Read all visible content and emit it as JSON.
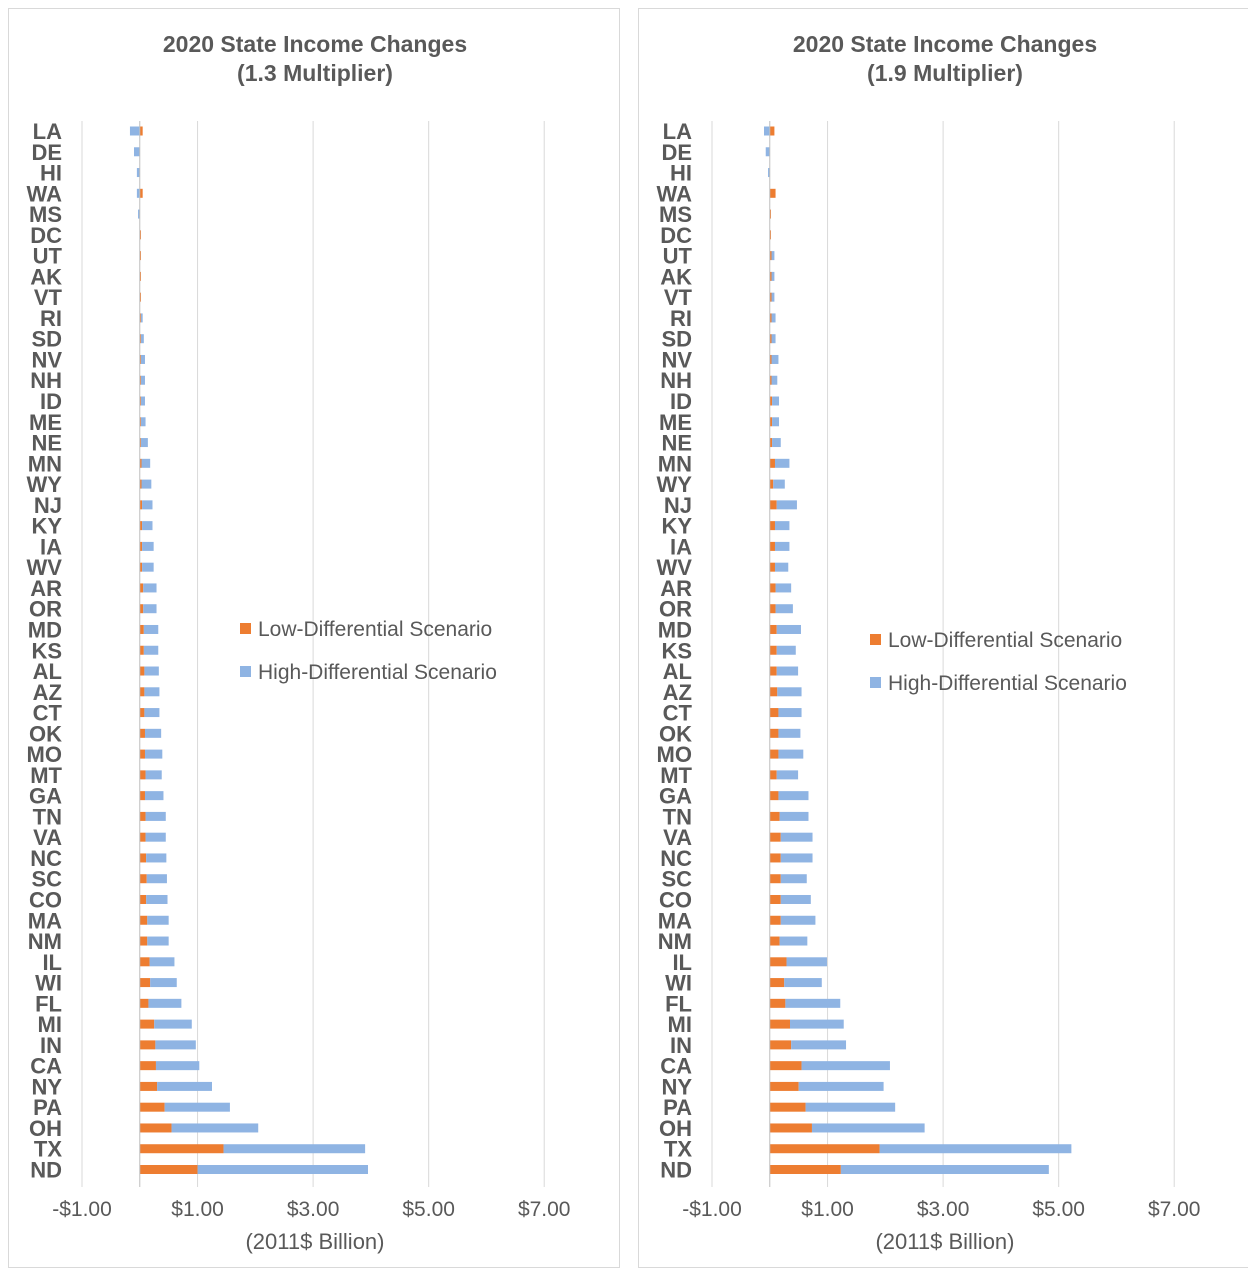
{
  "colors": {
    "low": "#ED7D31",
    "high": "#8FB4E3",
    "grid": "#D9D9D9",
    "text": "#595959"
  },
  "chart_data": [
    {
      "type": "bar",
      "orientation": "horizontal",
      "stacked": true,
      "title": "2020 State Income Changes",
      "subtitle": "(1.3 Multiplier)",
      "xlabel": "(2011$ Billion)",
      "xlim": [
        -1,
        8
      ],
      "xticks": [
        -1,
        1,
        3,
        5,
        7
      ],
      "xtick_labels": [
        "-$1.00",
        "$1.00",
        "$3.00",
        "$5.00",
        "$7.00"
      ],
      "grid": true,
      "legend_position": "center-right",
      "categories": [
        "LA",
        "DE",
        "HI",
        "WA",
        "MS",
        "DC",
        "UT",
        "AK",
        "VT",
        "RI",
        "SD",
        "NV",
        "NH",
        "ID",
        "ME",
        "NE",
        "MN",
        "WY",
        "NJ",
        "KY",
        "IA",
        "WV",
        "AR",
        "OR",
        "MD",
        "KS",
        "AL",
        "AZ",
        "CT",
        "OK",
        "MO",
        "MT",
        "GA",
        "TN",
        "VA",
        "NC",
        "SC",
        "CO",
        "MA",
        "NM",
        "IL",
        "WI",
        "FL",
        "MI",
        "IN",
        "CA",
        "NY",
        "PA",
        "OH",
        "TX",
        "ND"
      ],
      "series": [
        {
          "name": "Low-Differential Scenario",
          "values": [
            0.05,
            0,
            0,
            0.05,
            0,
            0.02,
            0.02,
            0.02,
            0.02,
            0.02,
            0.02,
            0.02,
            0.02,
            0.02,
            0.02,
            0.02,
            0.03,
            0.03,
            0.04,
            0.04,
            0.04,
            0.04,
            0.06,
            0.06,
            0.07,
            0.07,
            0.08,
            0.08,
            0.08,
            0.09,
            0.09,
            0.1,
            0.09,
            0.1,
            0.1,
            0.11,
            0.12,
            0.11,
            0.13,
            0.13,
            0.17,
            0.18,
            0.15,
            0.25,
            0.27,
            0.28,
            0.3,
            0.43,
            0.55,
            1.45,
            1.0
          ]
        },
        {
          "name": "High-Differential Scenario",
          "values": [
            -0.17,
            -0.1,
            -0.05,
            -0.05,
            -0.03,
            0,
            0,
            0,
            0,
            0.03,
            0.05,
            0.07,
            0.07,
            0.07,
            0.08,
            0.12,
            0.15,
            0.17,
            0.18,
            0.18,
            0.2,
            0.2,
            0.23,
            0.23,
            0.25,
            0.25,
            0.25,
            0.26,
            0.26,
            0.28,
            0.3,
            0.28,
            0.32,
            0.35,
            0.35,
            0.35,
            0.35,
            0.37,
            0.37,
            0.37,
            0.43,
            0.46,
            0.57,
            0.65,
            0.7,
            0.75,
            0.95,
            1.13,
            1.5,
            2.45,
            2.95
          ]
        }
      ]
    },
    {
      "type": "bar",
      "orientation": "horizontal",
      "stacked": true,
      "title": "2020 State Income Changes",
      "subtitle": "(1.9 Multiplier)",
      "xlabel": "(2011$ Billion)",
      "xlim": [
        -1,
        8
      ],
      "xticks": [
        -1,
        1,
        3,
        5,
        7
      ],
      "xtick_labels": [
        "-$1.00",
        "$1.00",
        "$3.00",
        "$5.00",
        "$7.00"
      ],
      "grid": true,
      "legend_position": "center-right",
      "categories": [
        "LA",
        "DE",
        "HI",
        "WA",
        "MS",
        "DC",
        "UT",
        "AK",
        "VT",
        "RI",
        "SD",
        "NV",
        "NH",
        "ID",
        "ME",
        "NE",
        "MN",
        "WY",
        "NJ",
        "KY",
        "IA",
        "WV",
        "AR",
        "OR",
        "MD",
        "KS",
        "AL",
        "AZ",
        "CT",
        "OK",
        "MO",
        "MT",
        "GA",
        "TN",
        "VA",
        "NC",
        "SC",
        "CO",
        "MA",
        "NM",
        "IL",
        "WI",
        "FL",
        "MI",
        "IN",
        "CA",
        "NY",
        "PA",
        "OH",
        "TX",
        "ND"
      ],
      "series": [
        {
          "name": "Low-Differential Scenario",
          "values": [
            0.08,
            0,
            0,
            0.1,
            0.02,
            0.02,
            0.03,
            0.03,
            0.03,
            0.03,
            0.03,
            0.03,
            0.03,
            0.04,
            0.04,
            0.04,
            0.09,
            0.06,
            0.12,
            0.09,
            0.09,
            0.09,
            0.1,
            0.1,
            0.12,
            0.12,
            0.12,
            0.13,
            0.15,
            0.15,
            0.15,
            0.12,
            0.15,
            0.17,
            0.19,
            0.19,
            0.19,
            0.19,
            0.19,
            0.17,
            0.29,
            0.25,
            0.27,
            0.35,
            0.37,
            0.55,
            0.5,
            0.62,
            0.73,
            1.9,
            1.23
          ]
        },
        {
          "name": "High-Differential Scenario",
          "values": [
            -0.1,
            -0.07,
            -0.03,
            0,
            0,
            0,
            0.05,
            0.05,
            0.05,
            0.07,
            0.07,
            0.12,
            0.1,
            0.12,
            0.12,
            0.15,
            0.25,
            0.2,
            0.35,
            0.25,
            0.25,
            0.23,
            0.27,
            0.3,
            0.42,
            0.33,
            0.37,
            0.42,
            0.4,
            0.38,
            0.43,
            0.37,
            0.52,
            0.5,
            0.55,
            0.55,
            0.45,
            0.52,
            0.6,
            0.48,
            0.7,
            0.65,
            0.95,
            0.93,
            0.95,
            1.53,
            1.47,
            1.55,
            1.95,
            3.32,
            3.6
          ]
        }
      ]
    }
  ]
}
